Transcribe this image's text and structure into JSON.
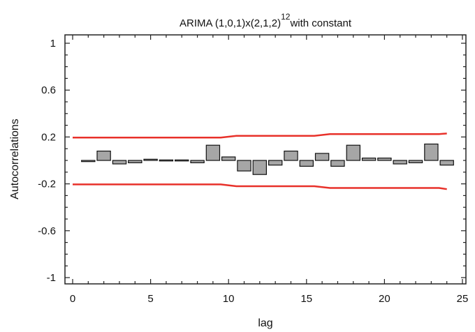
{
  "chart_data": {
    "type": "bar",
    "title": "ARIMA (1,0,1)x(2,1,2)",
    "title_superscript": "12",
    "title_suffix": "with constant",
    "xlabel": "lag",
    "ylabel": "Autocorrelations",
    "xlim": [
      0,
      25
    ],
    "ylim": [
      -1,
      1
    ],
    "x_ticks": [
      0,
      5,
      10,
      15,
      20,
      25
    ],
    "y_ticks": [
      1,
      0.6,
      0.2,
      -0.2,
      -0.6,
      -1
    ],
    "grid": false,
    "legend": "none",
    "bar_color": "#a6a6a6",
    "limit_color": "#e8312a",
    "x": [
      1,
      2,
      3,
      4,
      5,
      6,
      7,
      8,
      9,
      10,
      11,
      12,
      13,
      14,
      15,
      16,
      17,
      18,
      19,
      20,
      21,
      22,
      23,
      24
    ],
    "values": [
      -0.01,
      0.08,
      -0.03,
      -0.02,
      0.01,
      0,
      0,
      -0.02,
      0.13,
      0.03,
      -0.09,
      -0.12,
      -0.04,
      0.08,
      -0.05,
      0.06,
      -0.05,
      0.13,
      0.02,
      0.02,
      -0.03,
      -0.02,
      0.14,
      -0.04
    ],
    "upper_limit": {
      "x": [
        0,
        9.5,
        10.5,
        15.5,
        16.5,
        23.5,
        24
      ],
      "y": [
        0.195,
        0.195,
        0.21,
        0.21,
        0.225,
        0.225,
        0.23
      ]
    },
    "lower_limit": {
      "x": [
        0,
        9.5,
        10.5,
        15.5,
        16.5,
        23.5,
        24
      ],
      "y": [
        -0.205,
        -0.205,
        -0.22,
        -0.22,
        -0.235,
        -0.235,
        -0.245
      ]
    }
  }
}
